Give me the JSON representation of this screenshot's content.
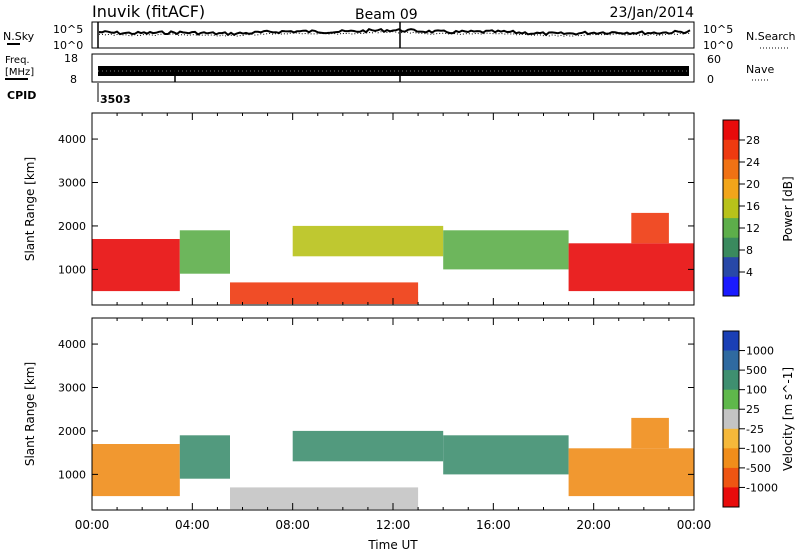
{
  "header": {
    "station": "Inuvik (fitACF)",
    "beam": "Beam 09",
    "date": "23/Jan/2014"
  },
  "top_panels": {
    "nsky_label": "N.Sky",
    "nsky_ticks": [
      "10^5",
      "10^0"
    ],
    "nsearch_label": "N.Search",
    "nsearch_ticks": [
      "10^5",
      "10^0"
    ],
    "freq_label": "Freq.",
    "freq_unit": "[MHz]",
    "freq_ticks": [
      "18",
      "8"
    ],
    "nave_label": "Nave",
    "nave_ticks": [
      "60",
      "0"
    ],
    "cpid_label": "CPID",
    "cpid_value": "3503"
  },
  "colors": {
    "power_scale": [
      "#1a1aff",
      "#2848a8",
      "#3a8a5e",
      "#5dae4a",
      "#b8c21a",
      "#f2a51a",
      "#f07214",
      "#ee3a10",
      "#e80b0b"
    ],
    "velocity_scale": [
      "#1a3fb5",
      "#2f6aa0",
      "#3f8f70",
      "#5fb84b",
      "#c4c4c4",
      "#f5b83a",
      "#f08d1a",
      "#ee5512",
      "#e80b0b"
    ]
  },
  "chart_data": [
    {
      "type": "heatmap",
      "title": "",
      "xlabel": "Time UT",
      "ylabel": "Slant Range [km]",
      "x_ticks": [
        "00:00",
        "04:00",
        "08:00",
        "12:00",
        "16:00",
        "20:00",
        "00:00"
      ],
      "y_ticks": [
        "1000",
        "2000",
        "3000",
        "4000"
      ],
      "ylim": [
        180,
        4600
      ],
      "colorbar": {
        "label": "Power [dB]",
        "ticks": [
          "28",
          "24",
          "20",
          "16",
          "12",
          "8",
          "4"
        ],
        "range": [
          0,
          30
        ]
      },
      "echo_regions": [
        {
          "t_start": 0.0,
          "t_end": 3.5,
          "r_low": 500,
          "r_high": 1700,
          "value": 27
        },
        {
          "t_start": 3.5,
          "t_end": 5.5,
          "r_low": 900,
          "r_high": 1900,
          "value": 12
        },
        {
          "t_start": 5.5,
          "t_end": 13.0,
          "r_low": 200,
          "r_high": 700,
          "value": 25
        },
        {
          "t_start": 8.0,
          "t_end": 14.0,
          "r_low": 1300,
          "r_high": 2000,
          "value": 14
        },
        {
          "t_start": 14.0,
          "t_end": 19.0,
          "r_low": 1000,
          "r_high": 1900,
          "value": 12
        },
        {
          "t_start": 19.0,
          "t_end": 24.0,
          "r_low": 500,
          "r_high": 1600,
          "value": 27
        },
        {
          "t_start": 21.5,
          "t_end": 23.0,
          "r_low": 1600,
          "r_high": 2300,
          "value": 26
        }
      ]
    },
    {
      "type": "heatmap",
      "title": "",
      "xlabel": "Time UT",
      "ylabel": "Slant Range [km]",
      "x_ticks": [
        "00:00",
        "04:00",
        "08:00",
        "12:00",
        "16:00",
        "20:00",
        "00:00"
      ],
      "y_ticks": [
        "1000",
        "2000",
        "3000",
        "4000"
      ],
      "ylim": [
        180,
        4600
      ],
      "colorbar": {
        "label": "Velocity [m s^-1]",
        "ticks": [
          "1000",
          "500",
          "100",
          "25",
          "-25",
          "-100",
          "-500",
          "-1000"
        ]
      },
      "echo_regions": [
        {
          "t_start": 0.0,
          "t_end": 3.5,
          "r_low": 500,
          "r_high": 1700,
          "value": -150
        },
        {
          "t_start": 3.5,
          "t_end": 5.5,
          "r_low": 900,
          "r_high": 1900,
          "value": 150
        },
        {
          "t_start": 5.5,
          "t_end": 13.0,
          "r_low": 200,
          "r_high": 700,
          "value": 10
        },
        {
          "t_start": 8.0,
          "t_end": 14.0,
          "r_low": 1300,
          "r_high": 2000,
          "value": 300
        },
        {
          "t_start": 14.0,
          "t_end": 19.0,
          "r_low": 1000,
          "r_high": 1900,
          "value": 200
        },
        {
          "t_start": 19.0,
          "t_end": 24.0,
          "r_low": 500,
          "r_high": 1600,
          "value": -150
        },
        {
          "t_start": 21.5,
          "t_end": 23.0,
          "r_low": 1600,
          "r_high": 2300,
          "value": -200
        }
      ]
    }
  ]
}
